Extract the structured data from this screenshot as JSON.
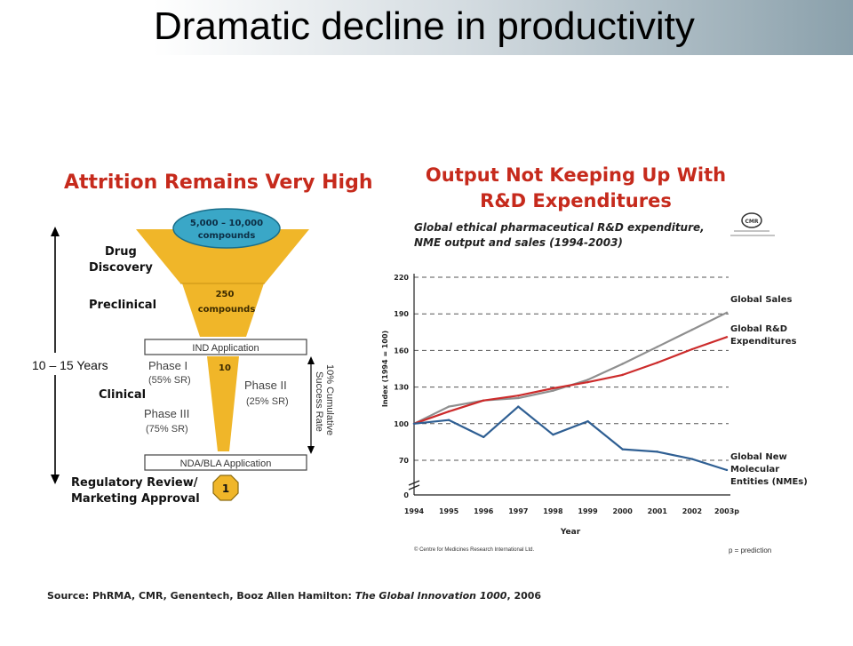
{
  "slide": {
    "title": "Dramatic decline in productivity"
  },
  "funnel": {
    "heading": "Attrition Remains Very High",
    "top_badge": [
      "5,000 – 10,000",
      "compounds"
    ],
    "mid_label": [
      "250",
      "compounds"
    ],
    "stage_drug_discovery": [
      "Drug",
      "Discovery"
    ],
    "stage_preclinical": "Preclinical",
    "stage_clinical": "Clinical",
    "stage_regulatory": [
      "Regulatory Review/",
      "Marketing Approval"
    ],
    "ind_application": "IND Application",
    "nda_application": "NDA/BLA Application",
    "years_label": "10 – 15 Years",
    "phase1": [
      "Phase I",
      "(55% SR)"
    ],
    "phase2": [
      "Phase II",
      "(25% SR)"
    ],
    "phase3": [
      "Phase III",
      "(75% SR)"
    ],
    "phase_count": "10",
    "final_count": "1",
    "cumulative": [
      "10% Cumulative",
      "Success Rate"
    ]
  },
  "chart": {
    "heading": [
      "Output Not Keeping Up With",
      "R&D Expenditures"
    ],
    "subtitle": [
      "Global ethical pharmaceutical R&D expenditure,",
      "NME output and sales (1994-2003)"
    ],
    "logo_text": "CMR",
    "copyright": "© Centre for Medicines Research International Ltd.",
    "prediction_note": "p = prediction"
  },
  "chart_data": {
    "type": "line",
    "x": [
      "1994",
      "1995",
      "1996",
      "1997",
      "1998",
      "1999",
      "2000",
      "2001",
      "2002",
      "2003p"
    ],
    "xlabel": "Year",
    "ylabel": "Index (1994 = 100)",
    "ylim": [
      0,
      220
    ],
    "yticks": [
      0,
      70,
      100,
      130,
      160,
      190,
      220
    ],
    "axis_break": true,
    "grid": "horizontal-dashed",
    "series": [
      {
        "name": "Global Sales",
        "color": "#8f8f8f",
        "values": [
          100,
          114,
          119,
          121,
          127,
          136,
          149,
          163,
          177,
          191
        ]
      },
      {
        "name": "Global R&D Expenditures",
        "color": "#cc2b2b",
        "values": [
          100,
          110,
          119,
          123,
          129,
          134,
          140,
          150,
          161,
          171
        ]
      },
      {
        "name": "Global New Molecular Entities (NMEs)",
        "color": "#2f5f93",
        "values": [
          100,
          103,
          89,
          114,
          91,
          102,
          79,
          77,
          71,
          62
        ]
      }
    ]
  },
  "footer": {
    "source_prefix": "Source: PhRMA, CMR, Genentech, Booz Allen Hamilton: ",
    "source_title": "The Global Innovation 1000",
    "source_suffix": ", 2006"
  }
}
